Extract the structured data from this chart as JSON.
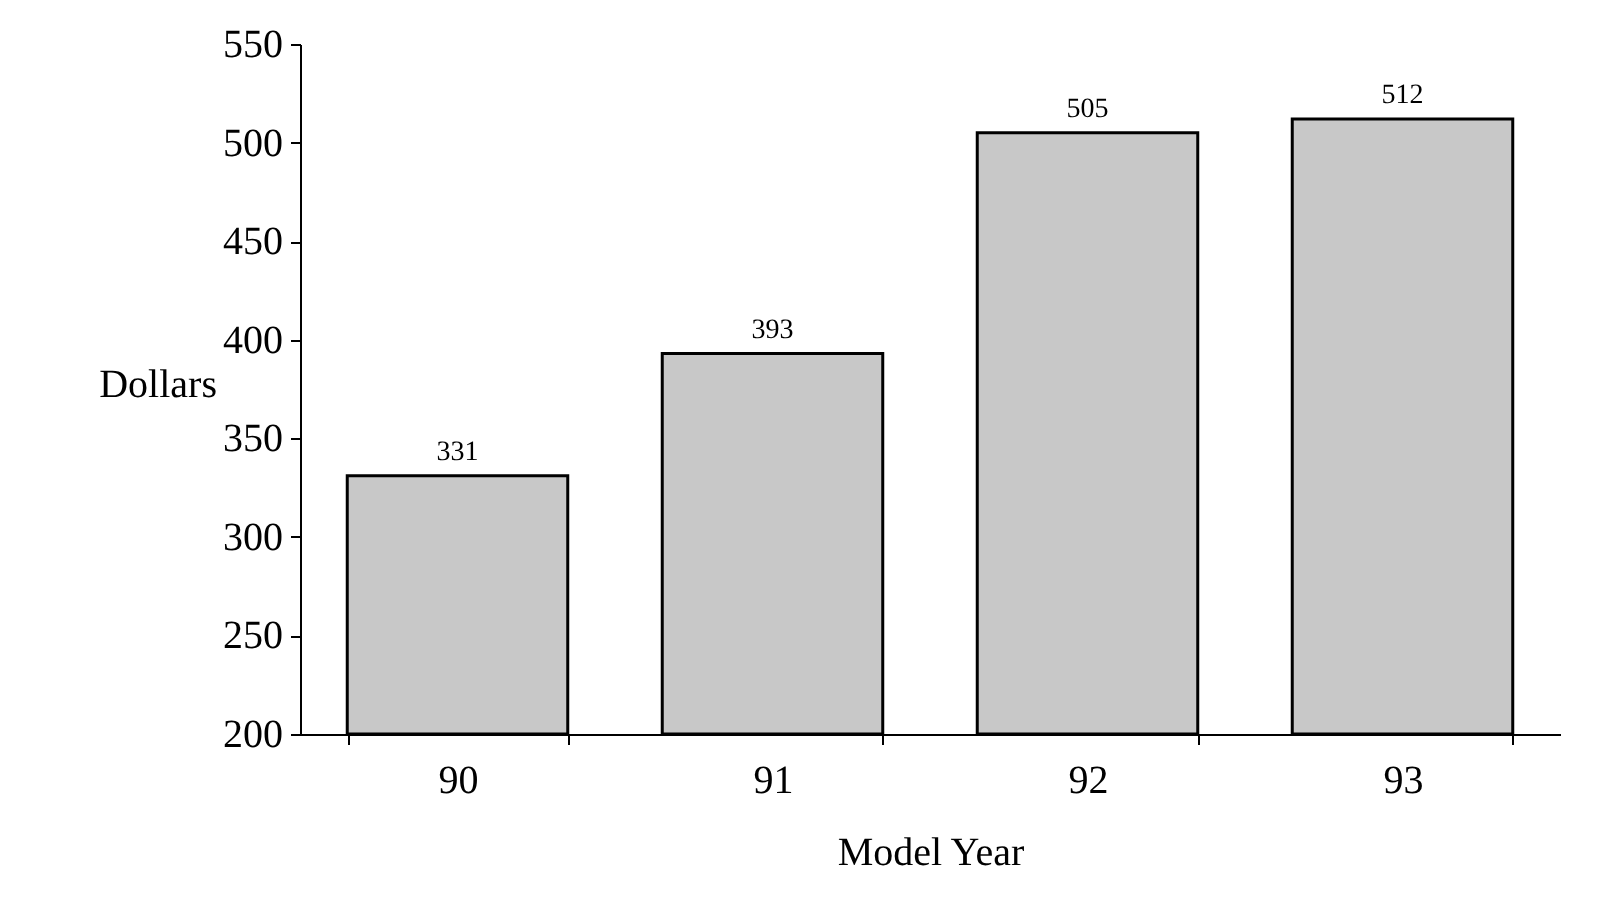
{
  "chart_data": {
    "type": "bar",
    "xlabel": "Model Year",
    "ylabel": "Dollars",
    "categories": [
      "90",
      "91",
      "92",
      "93"
    ],
    "values": [
      331,
      393,
      505,
      512
    ],
    "color": "#c8c8c8",
    "ylim": [
      200,
      550
    ],
    "yticks": [
      200,
      250,
      300,
      350,
      400,
      450,
      500,
      550
    ],
    "data_labels": true,
    "grid": false
  }
}
